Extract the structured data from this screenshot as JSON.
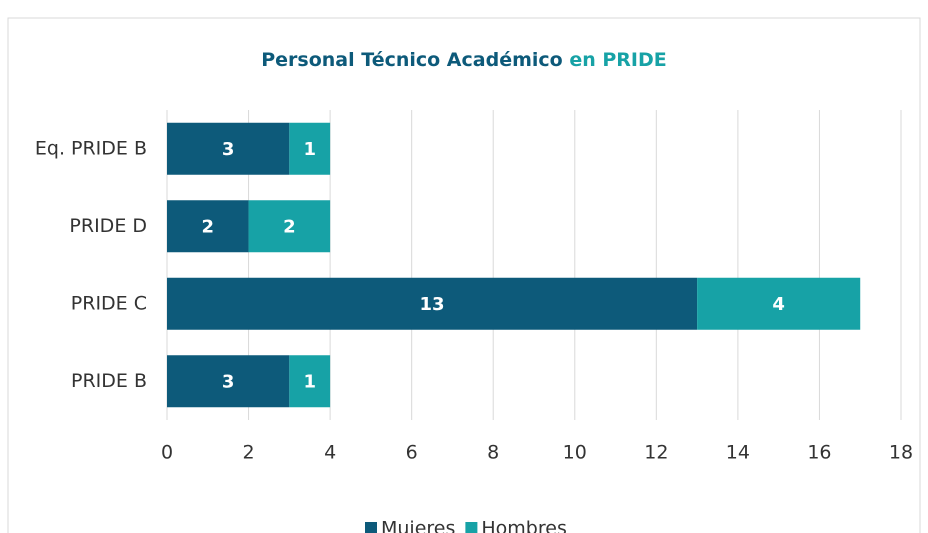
{
  "chart_data": {
    "type": "bar",
    "orientation": "horizontal",
    "stacked": true,
    "title": {
      "main": "Personal Técnico Académico",
      "highlight": "en PRIDE"
    },
    "categories": [
      "Eq. PRIDE B",
      "PRIDE D",
      "PRIDE C",
      "PRIDE B"
    ],
    "series": [
      {
        "name": "Mujeres",
        "color": "#0d5a7a",
        "values": [
          3,
          2,
          13,
          3
        ]
      },
      {
        "name": "Hombres",
        "color": "#17a2a6",
        "values": [
          1,
          2,
          4,
          1
        ]
      }
    ],
    "xlim": [
      0,
      18
    ],
    "xticks": [
      0,
      2,
      4,
      6,
      8,
      10,
      12,
      14,
      16,
      18
    ],
    "grid": true,
    "legend": "bottom",
    "title_colors": [
      "#0d5a7a",
      "#17a2a6"
    ]
  }
}
